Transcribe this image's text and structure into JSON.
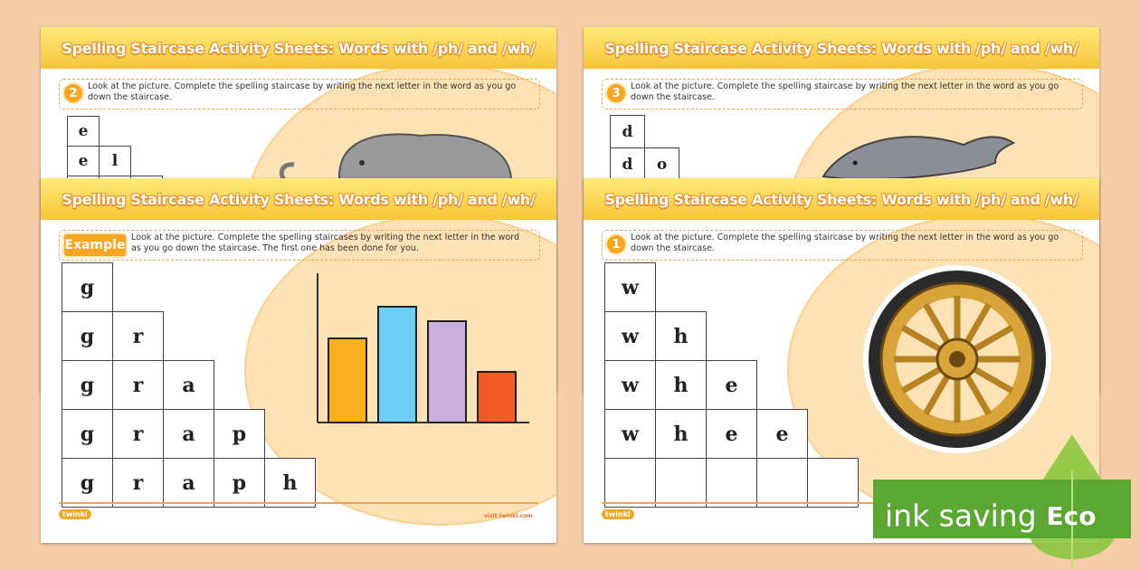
{
  "sheets": [
    {
      "title": "Spelling Staircase Activity Sheets: Words with /ph/ and /wh/",
      "badge": "2",
      "instruction": "Look at the picture. Complete the spelling staircase by writing the next letter in the word as you go down the staircase.",
      "staircase": [
        [
          "e"
        ],
        [
          "e",
          "l"
        ]
      ]
    },
    {
      "title": "Spelling Staircase Activity Sheets: Words with /ph/ and /wh/",
      "badge": "3",
      "instruction": "Look at the picture. Complete the spelling staircase by writing the next letter in the word as you go down the staircase.",
      "staircase": [
        [
          "d"
        ],
        [
          "d",
          "o"
        ]
      ]
    },
    {
      "title": "Spelling Staircase Activity Sheets: Words with /ph/ and /wh/",
      "badge": "Example",
      "instruction": "Look at the picture. Complete the spelling staircases by writing the next letter in the word as you go down the staircase. The first one has been done for you.",
      "staircase": [
        [
          "g"
        ],
        [
          "g",
          "r"
        ],
        [
          "g",
          "r",
          "a"
        ],
        [
          "g",
          "r",
          "a",
          "p"
        ],
        [
          "g",
          "r",
          "a",
          "p",
          "h"
        ]
      ],
      "footer": {
        "logo": "twinkl",
        "url": "visit twinkl.com"
      }
    },
    {
      "title": "Spelling Staircase Activity Sheets: Words with /ph/ and /wh/",
      "badge": "1",
      "instruction": "Look at the picture. Complete the spelling staircase by writing the next letter in the word as you go down the staircase.",
      "staircase": [
        [
          "w"
        ],
        [
          "w",
          "h"
        ],
        [
          "w",
          "h",
          "e"
        ],
        [
          "w",
          "h",
          "e",
          "e"
        ]
      ],
      "footer": {
        "logo": "twinkl"
      }
    }
  ],
  "eco_badge": {
    "label": "ink saving",
    "tag": "Eco"
  }
}
